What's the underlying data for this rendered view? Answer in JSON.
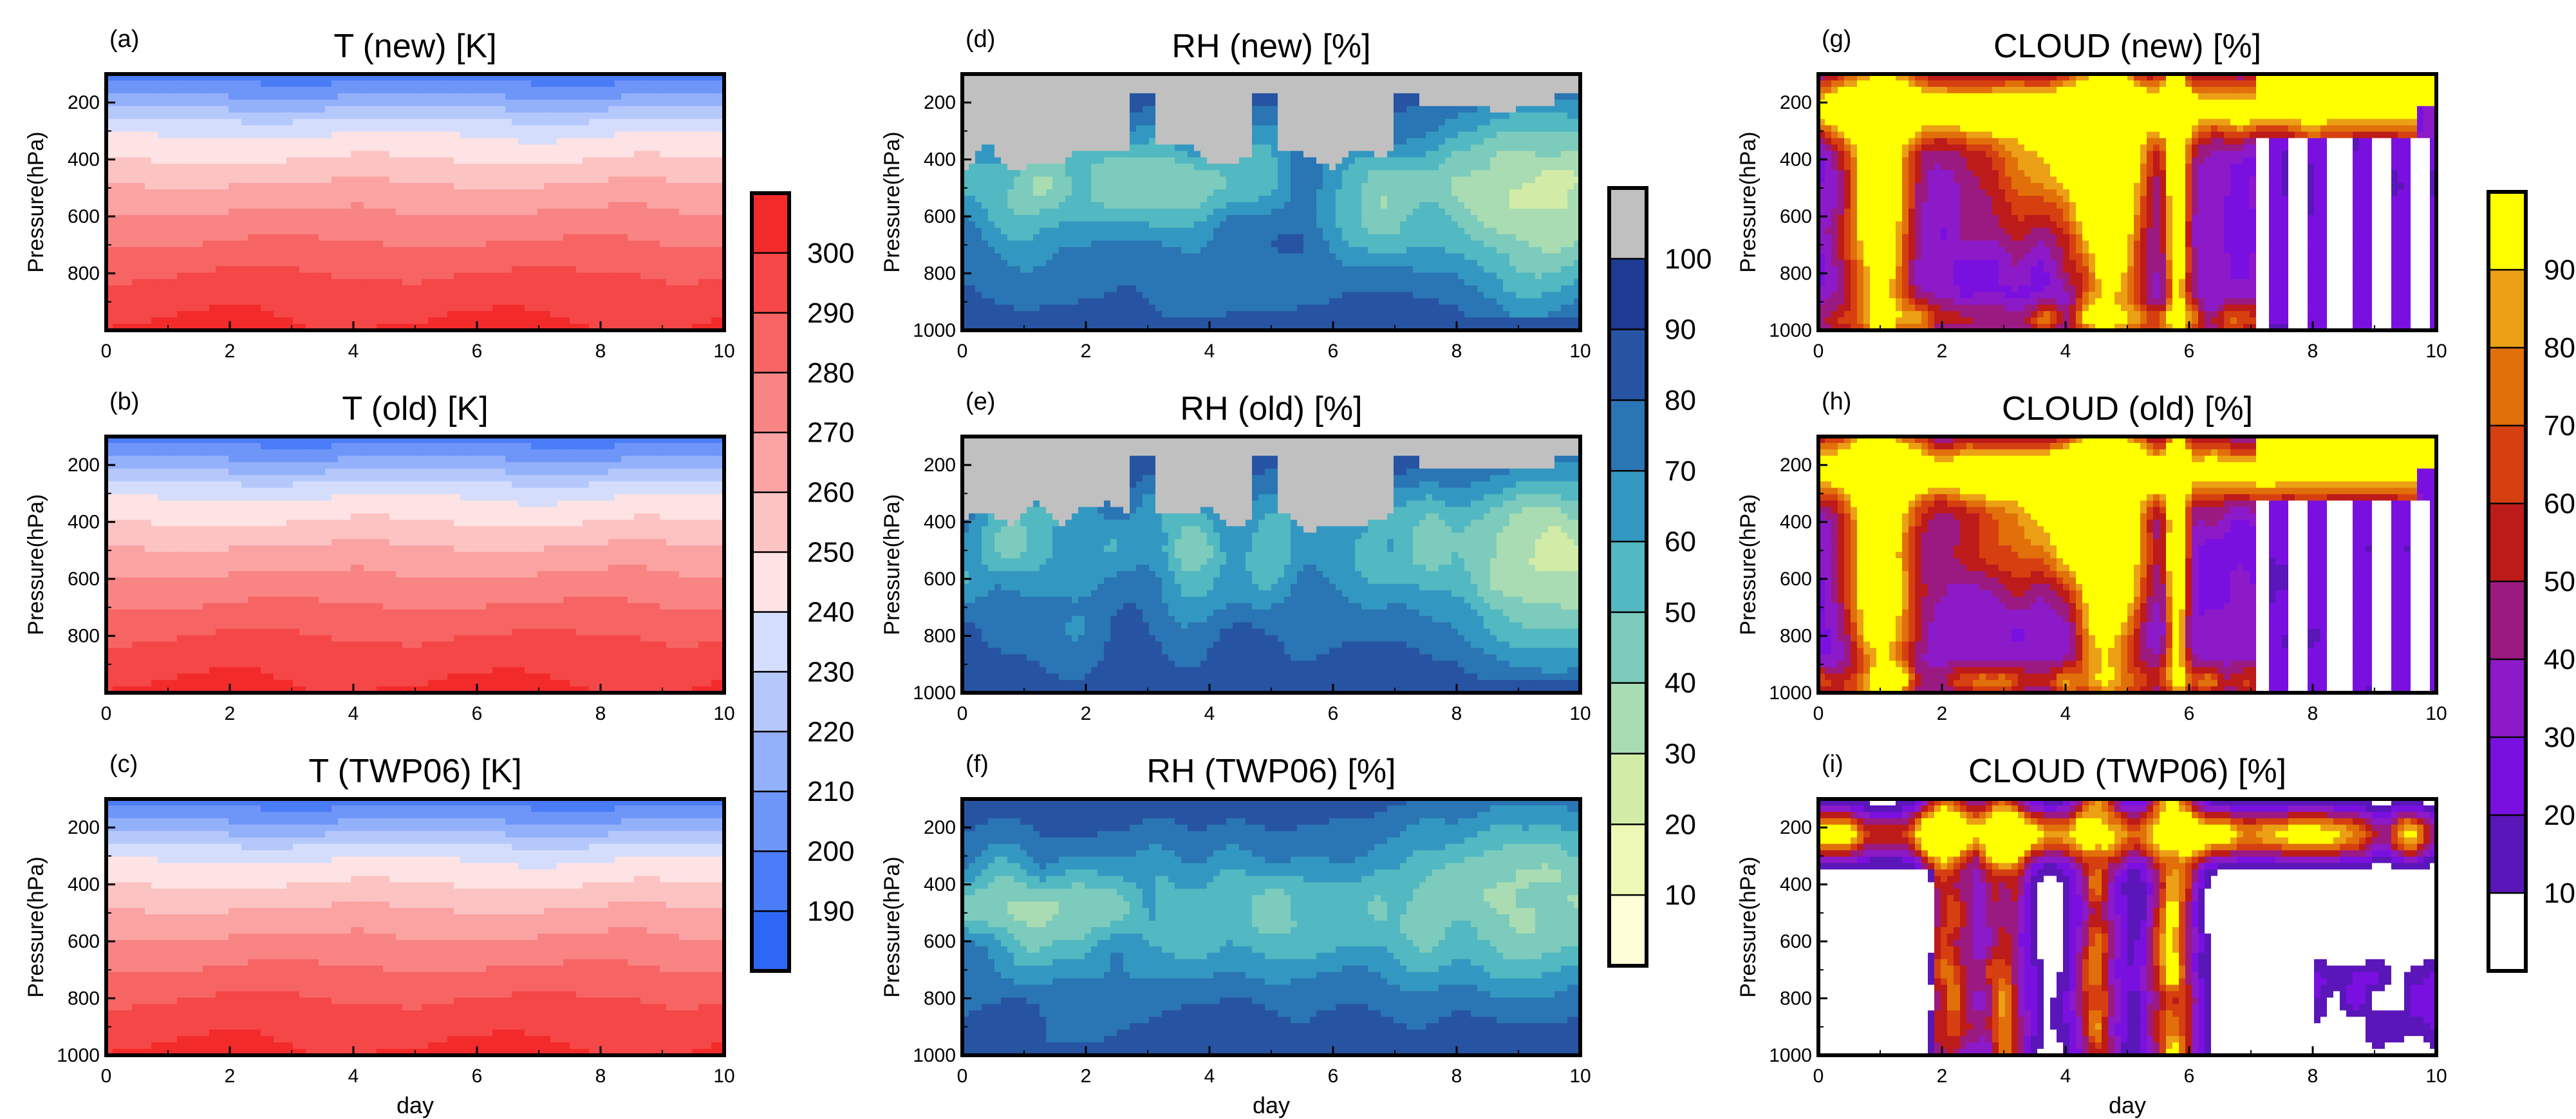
{
  "figure": {
    "columns": [
      {
        "variable": "T",
        "colorbar": {
          "tick_labels": [
            "190",
            "200",
            "210",
            "220",
            "230",
            "240",
            "250",
            "260",
            "270",
            "280",
            "290",
            "300"
          ],
          "colors": [
            "#2c67f5",
            "#4a7cf7",
            "#6e96f8",
            "#93b0fa",
            "#b5c8fb",
            "#d5ddfc",
            "#fde3e3",
            "#fcc3c3",
            "#fba3a3",
            "#f98484",
            "#f76464",
            "#f54747",
            "#f32a2a"
          ]
        }
      },
      {
        "variable": "RH",
        "colorbar": {
          "tick_labels": [
            "10",
            "20",
            "30",
            "40",
            "50",
            "60",
            "70",
            "80",
            "90",
            "100"
          ],
          "colors": [
            "#fefed6",
            "#edf8b4",
            "#d2eca8",
            "#a9dcb2",
            "#7ccbbc",
            "#52b8c1",
            "#3398c1",
            "#2a75b3",
            "#2754a2",
            "#1f3a93",
            "#c0c0c0"
          ]
        }
      },
      {
        "variable": "CLOUD",
        "colorbar": {
          "tick_labels": [
            "10",
            "20",
            "30",
            "40",
            "50",
            "60",
            "70",
            "80",
            "90"
          ],
          "colors": [
            "#ffffff",
            "#5a16b8",
            "#7a10e0",
            "#8d1ac8",
            "#9b1a82",
            "#bd1a1a",
            "#d64010",
            "#e2700a",
            "#eca015",
            "#ffff00"
          ]
        }
      }
    ],
    "panels": [
      {
        "label": "(a)",
        "title": "T (new) [K]"
      },
      {
        "label": "(b)",
        "title": "T (old) [K]"
      },
      {
        "label": "(c)",
        "title": "T (TWP06) [K]"
      },
      {
        "label": "(d)",
        "title": "RH (new) [%]"
      },
      {
        "label": "(e)",
        "title": "RH (old) [%]"
      },
      {
        "label": "(f)",
        "title": "RH (TWP06) [%]"
      },
      {
        "label": "(g)",
        "title": "CLOUD (new) [%]"
      },
      {
        "label": "(h)",
        "title": "CLOUD (old) [%]"
      },
      {
        "label": "(i)",
        "title": "CLOUD (TWP06) [%]"
      }
    ],
    "x_axis": {
      "label": "day",
      "ticks": [
        "0",
        "2",
        "4",
        "6",
        "8",
        "10"
      ]
    },
    "y_axis": {
      "label": "Pressure(hPa)",
      "ticks_full": [
        "200",
        "400",
        "600",
        "800",
        "1000"
      ],
      "ticks_partial": [
        "200",
        "400",
        "600",
        "800"
      ]
    }
  },
  "chart_data": [
    {
      "type": "heatmap",
      "panel": "(a)",
      "title": "T (new) [K]",
      "xlabel": "",
      "ylabel": "Pressure(hPa)",
      "xlim": [
        0,
        10
      ],
      "ylim": [
        1000,
        100
      ],
      "x_ticks": [
        0,
        2,
        4,
        6,
        8,
        10
      ],
      "y_ticks": [
        200,
        400,
        600,
        800
      ],
      "profile_pressure": [
        100,
        150,
        200,
        250,
        300,
        400,
        500,
        600,
        700,
        800,
        900,
        1000
      ],
      "profile_value": [
        195,
        205,
        215,
        228,
        238,
        250,
        262,
        272,
        281,
        290,
        297,
        302
      ],
      "contour_levels": [
        190,
        200,
        210,
        220,
        230,
        240,
        250,
        260,
        270,
        280,
        290,
        300
      ]
    },
    {
      "type": "heatmap",
      "panel": "(b)",
      "title": "T (old) [K]",
      "xlabel": "",
      "ylabel": "Pressure(hPa)",
      "xlim": [
        0,
        10
      ],
      "ylim": [
        1000,
        100
      ],
      "x_ticks": [
        0,
        2,
        4,
        6,
        8,
        10
      ],
      "y_ticks": [
        200,
        400,
        600,
        800
      ],
      "profile_pressure": [
        100,
        150,
        200,
        250,
        300,
        400,
        500,
        600,
        700,
        800,
        900,
        1000
      ],
      "profile_value": [
        195,
        205,
        215,
        228,
        238,
        250,
        262,
        272,
        281,
        290,
        297,
        302
      ],
      "contour_levels": [
        190,
        200,
        210,
        220,
        230,
        240,
        250,
        260,
        270,
        280,
        290,
        300
      ]
    },
    {
      "type": "heatmap",
      "panel": "(c)",
      "title": "T (TWP06) [K]",
      "xlabel": "day",
      "ylabel": "Pressure(hPa)",
      "xlim": [
        0,
        10
      ],
      "ylim": [
        1000,
        100
      ],
      "x_ticks": [
        0,
        2,
        4,
        6,
        8,
        10
      ],
      "y_ticks": [
        200,
        400,
        600,
        800,
        1000
      ],
      "profile_pressure": [
        100,
        150,
        200,
        250,
        300,
        400,
        500,
        600,
        700,
        800,
        900,
        1000
      ],
      "profile_value": [
        195,
        205,
        215,
        228,
        238,
        250,
        262,
        272,
        281,
        290,
        297,
        302
      ],
      "contour_levels": [
        190,
        200,
        210,
        220,
        230,
        240,
        250,
        260,
        270,
        280,
        290,
        300
      ]
    },
    {
      "type": "heatmap",
      "panel": "(d)",
      "title": "RH (new) [%]",
      "xlabel": "",
      "ylabel": "Pressure(hPa)",
      "xlim": [
        0,
        10
      ],
      "ylim": [
        1000,
        100
      ],
      "x_ticks": [
        0,
        2,
        4,
        6,
        8,
        10
      ],
      "y_ticks": [
        200,
        400,
        600,
        800,
        1000
      ],
      "contour_levels": [
        10,
        20,
        30,
        40,
        50,
        60,
        70,
        80,
        90,
        100
      ],
      "features": {
        "saturated_layer_hPa": [
          150,
          330
        ],
        "moist_background": 92,
        "dry_region_day": [
          7.5,
          10
        ],
        "dry_region_hPa": [
          300,
          800
        ],
        "dry_core_value": 30
      }
    },
    {
      "type": "heatmap",
      "panel": "(e)",
      "title": "RH (old) [%]",
      "xlabel": "",
      "ylabel": "Pressure(hPa)",
      "xlim": [
        0,
        10
      ],
      "ylim": [
        1000,
        100
      ],
      "x_ticks": [
        0,
        2,
        4,
        6,
        8,
        10
      ],
      "y_ticks": [
        200,
        400,
        600,
        800,
        1000
      ],
      "contour_levels": [
        10,
        20,
        30,
        40,
        50,
        60,
        70,
        80,
        90,
        100
      ],
      "features": {
        "saturated_layer_hPa": [
          150,
          320
        ],
        "moist_background": 92,
        "dry_region_day": [
          7.5,
          10
        ],
        "dry_region_hPa": [
          300,
          800
        ],
        "dry_core_value": 30
      }
    },
    {
      "type": "heatmap",
      "panel": "(f)",
      "title": "RH (TWP06) [%]",
      "xlabel": "day",
      "ylabel": "Pressure(hPa)",
      "xlim": [
        0,
        10
      ],
      "ylim": [
        1000,
        100
      ],
      "x_ticks": [
        0,
        2,
        4,
        6,
        8,
        10
      ],
      "y_ticks": [
        200,
        400,
        600,
        800,
        1000
      ],
      "contour_levels": [
        10,
        20,
        30,
        40,
        50,
        60,
        70,
        80,
        90,
        100
      ],
      "features": {
        "moist_background": 88,
        "dry_region_day": [
          7,
          10
        ],
        "dry_region_hPa": [
          200,
          650
        ],
        "dry_core_value": 40
      }
    },
    {
      "type": "heatmap",
      "panel": "(g)",
      "title": "CLOUD (new) [%]",
      "xlabel": "",
      "ylabel": "Pressure(hPa)",
      "xlim": [
        0,
        10
      ],
      "ylim": [
        1000,
        100
      ],
      "x_ticks": [
        0,
        2,
        4,
        6,
        8,
        10
      ],
      "y_ticks": [
        200,
        400,
        600,
        800,
        1000
      ],
      "contour_levels": [
        10,
        20,
        30,
        40,
        50,
        60,
        70,
        80,
        90
      ],
      "features": {
        "anvil_layer_hPa": [
          150,
          300
        ],
        "deep_convection_days": [
          1.0,
          4.7,
          5.8
        ],
        "clear_region_day": [
          7,
          10
        ]
      }
    },
    {
      "type": "heatmap",
      "panel": "(h)",
      "title": "CLOUD (old) [%]",
      "xlabel": "",
      "ylabel": "Pressure(hPa)",
      "xlim": [
        0,
        10
      ],
      "ylim": [
        1000,
        100
      ],
      "x_ticks": [
        0,
        2,
        4,
        6,
        8,
        10
      ],
      "y_ticks": [
        200,
        400,
        600,
        800,
        1000
      ],
      "contour_levels": [
        10,
        20,
        30,
        40,
        50,
        60,
        70,
        80,
        90
      ],
      "features": {
        "anvil_layer_hPa": [
          150,
          300
        ],
        "deep_convection_days": [
          1.0,
          4.7,
          5.8
        ],
        "clear_region_day": [
          7,
          10
        ]
      }
    },
    {
      "type": "heatmap",
      "panel": "(i)",
      "title": "CLOUD (TWP06) [%]",
      "xlabel": "day",
      "ylabel": "Pressure(hPa)",
      "xlim": [
        0,
        10
      ],
      "ylim": [
        1000,
        100
      ],
      "x_ticks": [
        0,
        2,
        4,
        6,
        8,
        10
      ],
      "y_ticks": [
        200,
        400,
        600,
        800,
        1000
      ],
      "contour_levels": [
        10,
        20,
        30,
        40,
        50,
        60,
        70,
        80,
        90
      ],
      "features": {
        "anvil_layer_hPa": [
          150,
          300
        ],
        "deep_convection_days": [
          2.1,
          3.0,
          4.5,
          5.7
        ],
        "clear_region_day": [
          0,
          2
        ]
      }
    }
  ]
}
